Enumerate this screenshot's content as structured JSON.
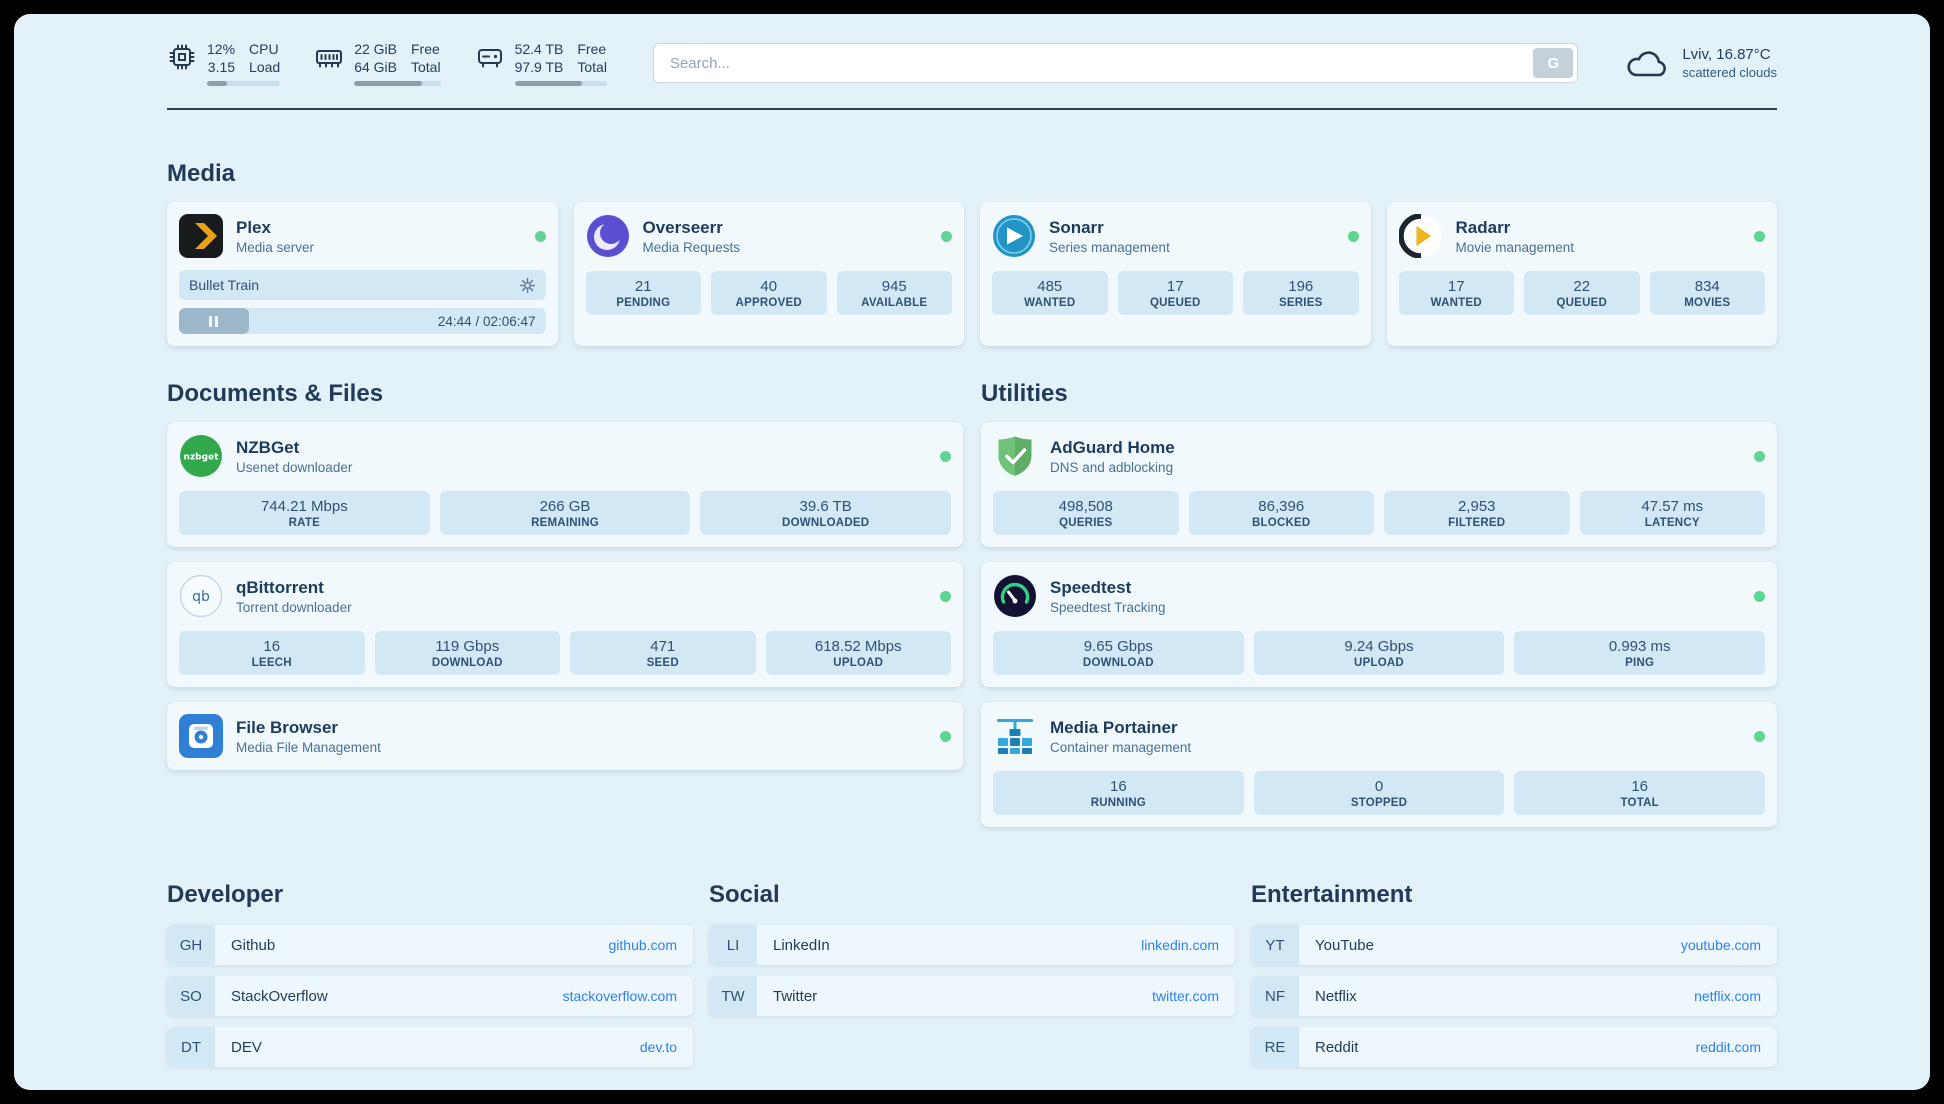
{
  "colors": {
    "accent_green": "#5fd592",
    "link_blue": "#2e7ff0",
    "panel_bg": "#e3f1f8",
    "stat_bg": "#d2e9f5"
  },
  "header": {
    "cpu": {
      "value1": "12%",
      "value2": "3.15",
      "label1": "CPU",
      "label2": "Load",
      "bar": 28
    },
    "memory": {
      "value1": "22 GiB",
      "value2": "64 GiB",
      "label1": "Free",
      "label2": "Total",
      "bar": 78
    },
    "disk": {
      "value1": "52.4 TB",
      "value2": "97.9 TB",
      "label1": "Free",
      "label2": "Total",
      "bar": 73
    },
    "search": {
      "placeholder": "Search...",
      "button": "G"
    },
    "weather": {
      "location": "Lviv, 16.87°C",
      "condition": "scattered clouds"
    }
  },
  "media": {
    "title": "Media",
    "plex": {
      "title": "Plex",
      "subtitle": "Media server",
      "now_playing": "Bullet Train",
      "time": "24:44 / 02:06:47",
      "progress": 19
    },
    "overseerr": {
      "title": "Overseerr",
      "subtitle": "Media Requests",
      "stats": [
        {
          "value": "21",
          "label": "PENDING"
        },
        {
          "value": "40",
          "label": "APPROVED"
        },
        {
          "value": "945",
          "label": "AVAILABLE"
        }
      ]
    },
    "sonarr": {
      "title": "Sonarr",
      "subtitle": "Series management",
      "stats": [
        {
          "value": "485",
          "label": "WANTED"
        },
        {
          "value": "17",
          "label": "QUEUED"
        },
        {
          "value": "196",
          "label": "SERIES"
        }
      ]
    },
    "radarr": {
      "title": "Radarr",
      "subtitle": "Movie management",
      "stats": [
        {
          "value": "17",
          "label": "WANTED"
        },
        {
          "value": "22",
          "label": "QUEUED"
        },
        {
          "value": "834",
          "label": "MOVIES"
        }
      ]
    }
  },
  "documents": {
    "title": "Documents & Files",
    "nzbget": {
      "title": "NZBGet",
      "subtitle": "Usenet downloader",
      "stats": [
        {
          "value": "744.21 Mbps",
          "label": "RATE"
        },
        {
          "value": "266 GB",
          "label": "REMAINING"
        },
        {
          "value": "39.6 TB",
          "label": "DOWNLOADED"
        }
      ]
    },
    "qbittorrent": {
      "title": "qBittorrent",
      "subtitle": "Torrent downloader",
      "stats": [
        {
          "value": "16",
          "label": "LEECH"
        },
        {
          "value": "119 Gbps",
          "label": "DOWNLOAD"
        },
        {
          "value": "471",
          "label": "SEED"
        },
        {
          "value": "618.52 Mbps",
          "label": "UPLOAD"
        }
      ]
    },
    "filebrowser": {
      "title": "File Browser",
      "subtitle": "Media File Management"
    }
  },
  "utilities": {
    "title": "Utilities",
    "adguard": {
      "title": "AdGuard Home",
      "subtitle": "DNS and adblocking",
      "stats": [
        {
          "value": "498,508",
          "label": "QUERIES"
        },
        {
          "value": "86,396",
          "label": "BLOCKED"
        },
        {
          "value": "2,953",
          "label": "FILTERED"
        },
        {
          "value": "47.57 ms",
          "label": "LATENCY"
        }
      ]
    },
    "speedtest": {
      "title": "Speedtest",
      "subtitle": "Speedtest Tracking",
      "stats": [
        {
          "value": "9.65 Gbps",
          "label": "DOWNLOAD"
        },
        {
          "value": "9.24 Gbps",
          "label": "UPLOAD"
        },
        {
          "value": "0.993 ms",
          "label": "PING"
        }
      ]
    },
    "portainer": {
      "title": "Media Portainer",
      "subtitle": "Container management",
      "stats": [
        {
          "value": "16",
          "label": "RUNNING"
        },
        {
          "value": "0",
          "label": "STOPPED"
        },
        {
          "value": "16",
          "label": "TOTAL"
        }
      ]
    }
  },
  "bookmarks": {
    "developer": {
      "title": "Developer",
      "items": [
        {
          "abbr": "GH",
          "name": "Github",
          "url": "github.com"
        },
        {
          "abbr": "SO",
          "name": "StackOverflow",
          "url": "stackoverflow.com"
        },
        {
          "abbr": "DT",
          "name": "DEV",
          "url": "dev.to"
        }
      ]
    },
    "social": {
      "title": "Social",
      "items": [
        {
          "abbr": "LI",
          "name": "LinkedIn",
          "url": "linkedin.com"
        },
        {
          "abbr": "TW",
          "name": "Twitter",
          "url": "twitter.com"
        }
      ]
    },
    "entertainment": {
      "title": "Entertainment",
      "items": [
        {
          "abbr": "YT",
          "name": "YouTube",
          "url": "youtube.com"
        },
        {
          "abbr": "NF",
          "name": "Netflix",
          "url": "netflix.com"
        },
        {
          "abbr": "RE",
          "name": "Reddit",
          "url": "reddit.com"
        }
      ]
    }
  }
}
